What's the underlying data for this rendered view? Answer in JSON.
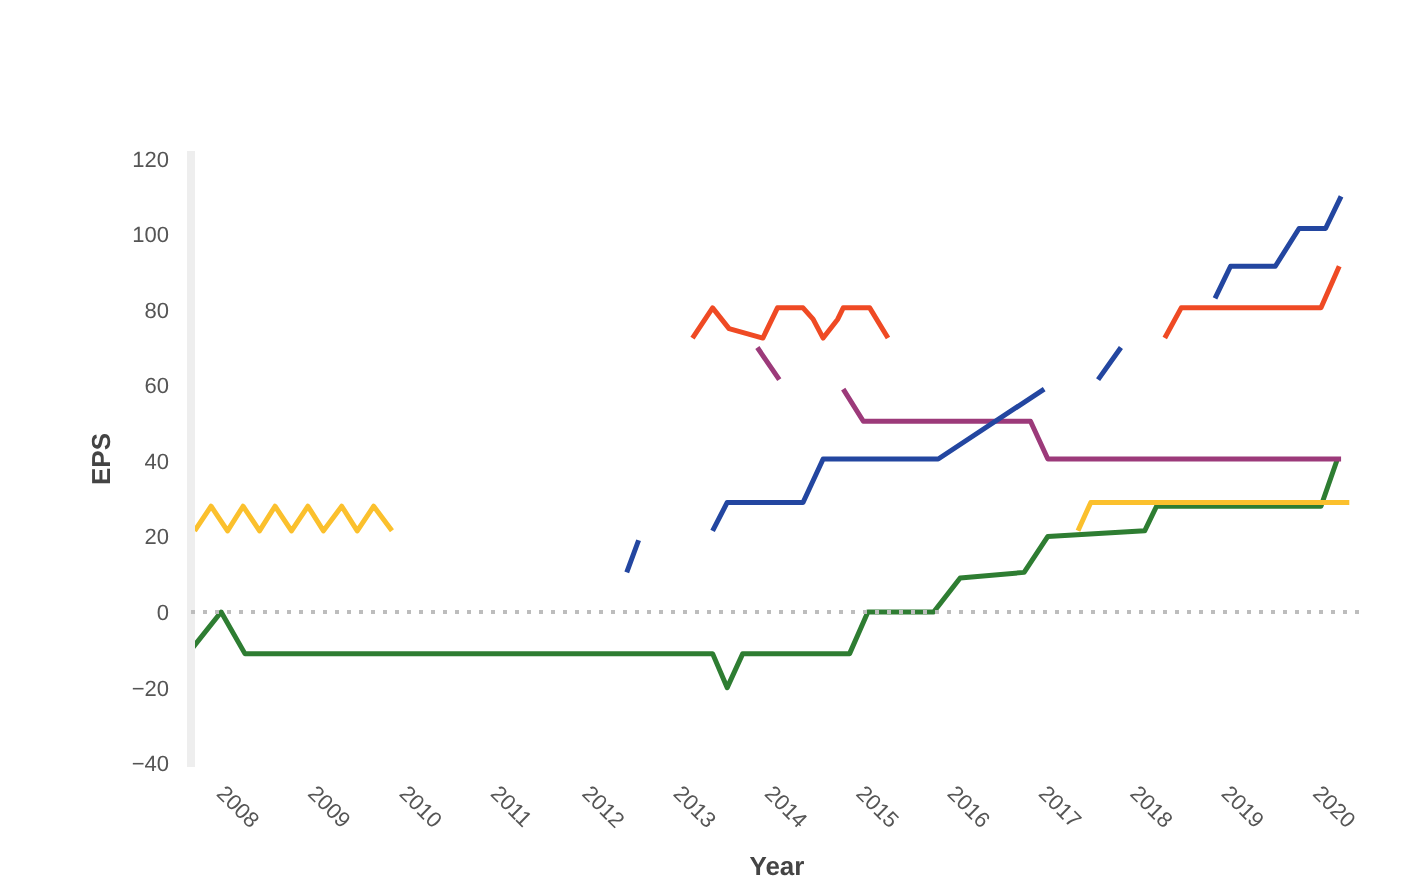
{
  "chart_data": {
    "type": "line",
    "xlabel": "Year",
    "ylabel": "EPS",
    "xlim": [
      2007.67,
      2020.5
    ],
    "xticks": [
      2008,
      2009,
      2010,
      2011,
      2012,
      2013,
      2014,
      2015,
      2016,
      2017,
      2018,
      2019,
      2020
    ],
    "ylim": [
      -41,
      122
    ],
    "yticks": [
      -40,
      -20,
      0,
      20,
      40,
      60,
      80,
      100,
      120
    ],
    "grid": false,
    "marker": "none",
    "line_style": "solid",
    "ref_lines": [
      {
        "axis": "y",
        "value": 0,
        "color": "#bdbdbd",
        "line_style": "dotted"
      }
    ],
    "series": [
      {
        "color": "#2e7d32",
        "x": [
          2007.67,
          2008,
          2008.26,
          2013.38,
          2013.54,
          2013.71,
          2014.88,
          2015.08,
          2015.8,
          2016.09,
          2016.79,
          2017.05,
          2018.11,
          2018.24,
          2020.04,
          2020.22
        ],
        "values": [
          -10,
          0,
          -11,
          -11,
          -20,
          -11,
          -11,
          0,
          0,
          9,
          10.5,
          20,
          21.5,
          28,
          28,
          40.5
        ]
      },
      {
        "color": "#fbc02d",
        "x": [
          2007.71,
          2007.89,
          2008.07,
          2008.24,
          2008.42,
          2008.59,
          2008.77,
          2008.95,
          2009.12,
          2009.32,
          2009.49,
          2009.67,
          2009.87,
          2013,
          2017.38,
          2017.52,
          2020.35
        ],
        "values": [
          21.5,
          28,
          21.5,
          28,
          21.5,
          28,
          21.5,
          28,
          21.5,
          28,
          21.5,
          28,
          21.5,
          null,
          21.5,
          29,
          29
        ]
      },
      {
        "color": "#ef4a24",
        "x": [
          2013.16,
          2013.38,
          2013.56,
          2013.93,
          2014.09,
          2014.37,
          2014.48,
          2014.59,
          2014.75,
          2014.81,
          2015.1,
          2015.3,
          2017,
          2018.33,
          2018.51,
          2020.04,
          2020.24
        ],
        "values": [
          72.5,
          80.5,
          75,
          72.5,
          80.5,
          80.5,
          77.5,
          72.5,
          77.5,
          80.5,
          80.5,
          72.5,
          null,
          72.5,
          80.5,
          80.5,
          91.5
        ]
      },
      {
        "color": "#9c3a7a",
        "x": [
          2013.87,
          2014.11,
          2014.5,
          2014.81,
          2015.03,
          2016.86,
          2017.05,
          2020.26
        ],
        "values": [
          70,
          61.5,
          null,
          59,
          50.5,
          50.5,
          40.5,
          40.5
        ]
      },
      {
        "color": "#2346a0",
        "x": [
          2012.44,
          2012.57,
          2013,
          2013.38,
          2013.54,
          2014.37,
          2014.59,
          2015.85,
          2017.01,
          2017.3,
          2017.6,
          2017.85,
          2018.5,
          2018.88,
          2019.05,
          2019.54,
          2019.8,
          2020.09,
          2020.26
        ],
        "values": [
          10.5,
          19,
          null,
          21.5,
          29,
          29,
          40.5,
          40.5,
          59,
          null,
          61.5,
          70,
          null,
          83,
          91.5,
          91.5,
          101.5,
          101.5,
          110
        ]
      }
    ]
  }
}
